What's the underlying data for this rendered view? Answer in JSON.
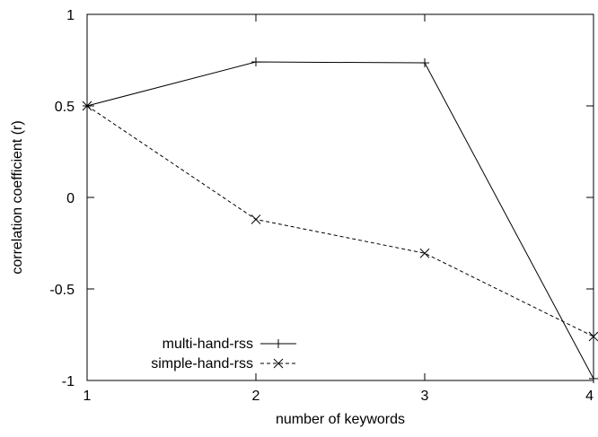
{
  "chart_data": {
    "type": "line",
    "title": "",
    "xlabel": "number of keywords",
    "ylabel": "correlation coefficient (r)",
    "xlim": [
      1,
      4
    ],
    "ylim": [
      -1,
      1
    ],
    "x_ticks": [
      1,
      2,
      3,
      4
    ],
    "y_ticks": [
      -1,
      -0.5,
      0,
      0.5,
      1
    ],
    "x_tick_labels": [
      "1",
      "2",
      "3",
      "4"
    ],
    "y_tick_labels": [
      "-1",
      "-0.5",
      "0",
      "0.5",
      "1"
    ],
    "grid": false,
    "legend_position": "bottom-left",
    "series": [
      {
        "name": "multi-hand-rss",
        "x": [
          1,
          2,
          3,
          4
        ],
        "values": [
          0.5,
          0.74,
          0.735,
          -0.99
        ],
        "line_style": "solid",
        "marker": "plus",
        "color": "#000000"
      },
      {
        "name": "simple-hand-rss",
        "x": [
          1,
          2,
          3,
          4
        ],
        "values": [
          0.5,
          -0.12,
          -0.305,
          -0.76
        ],
        "line_style": "dashed",
        "marker": "cross",
        "color": "#000000"
      }
    ]
  }
}
